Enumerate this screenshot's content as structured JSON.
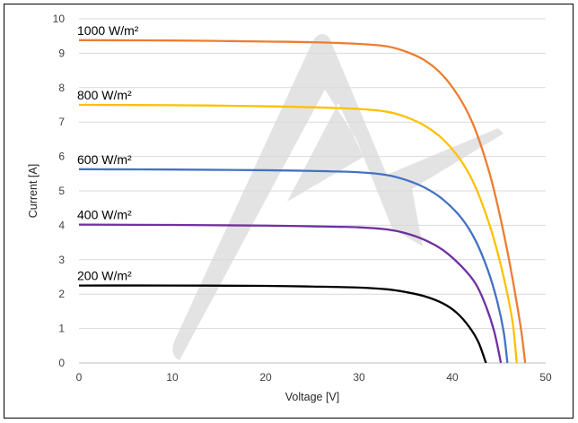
{
  "chart_data": {
    "type": "line",
    "xlabel": "Voltage [V]",
    "ylabel": "Current [A]",
    "xlim": [
      0,
      50
    ],
    "ylim": [
      0,
      10
    ],
    "x_ticks": [
      "0",
      "10",
      "20",
      "30",
      "40",
      "50"
    ],
    "y_ticks": [
      "0",
      "1",
      "2",
      "3",
      "4",
      "5",
      "6",
      "7",
      "8",
      "9",
      "10"
    ],
    "grid": "horizontal",
    "legend": "none",
    "series": [
      {
        "name": "1000 W/m²",
        "color": "#ED7D31",
        "points": [
          [
            0,
            9.38
          ],
          [
            10,
            9.37
          ],
          [
            20,
            9.34
          ],
          [
            25,
            9.32
          ],
          [
            30,
            9.27
          ],
          [
            33,
            9.2
          ],
          [
            35,
            9.05
          ],
          [
            37,
            8.8
          ],
          [
            39,
            8.35
          ],
          [
            41,
            7.6
          ],
          [
            42.5,
            6.75
          ],
          [
            44,
            5.5
          ],
          [
            45,
            4.4
          ],
          [
            46,
            3.1
          ],
          [
            46.8,
            1.9
          ],
          [
            47.4,
            0.9
          ],
          [
            47.8,
            0
          ]
        ]
      },
      {
        "name": "800 W/m²",
        "color": "#FFC000",
        "points": [
          [
            0,
            7.5
          ],
          [
            10,
            7.49
          ],
          [
            20,
            7.46
          ],
          [
            25,
            7.43
          ],
          [
            30,
            7.38
          ],
          [
            33,
            7.3
          ],
          [
            35,
            7.15
          ],
          [
            37,
            6.9
          ],
          [
            39,
            6.5
          ],
          [
            41,
            5.85
          ],
          [
            42.5,
            5.1
          ],
          [
            44,
            4.0
          ],
          [
            45,
            3.05
          ],
          [
            45.9,
            2.0
          ],
          [
            46.5,
            1.1
          ],
          [
            46.9,
            0
          ]
        ]
      },
      {
        "name": "600 W/m²",
        "color": "#4472C4",
        "points": [
          [
            0,
            5.63
          ],
          [
            10,
            5.62
          ],
          [
            20,
            5.6
          ],
          [
            25,
            5.58
          ],
          [
            30,
            5.54
          ],
          [
            33,
            5.46
          ],
          [
            35,
            5.32
          ],
          [
            37,
            5.1
          ],
          [
            39,
            4.75
          ],
          [
            41,
            4.2
          ],
          [
            42.5,
            3.55
          ],
          [
            43.8,
            2.7
          ],
          [
            44.8,
            1.8
          ],
          [
            45.5,
            0.9
          ],
          [
            45.9,
            0
          ]
        ]
      },
      {
        "name": "400 W/m²",
        "color": "#7030A0",
        "points": [
          [
            0,
            4.02
          ],
          [
            10,
            4.01
          ],
          [
            20,
            3.99
          ],
          [
            25,
            3.97
          ],
          [
            30,
            3.94
          ],
          [
            33,
            3.88
          ],
          [
            35,
            3.77
          ],
          [
            37,
            3.58
          ],
          [
            39,
            3.28
          ],
          [
            41,
            2.8
          ],
          [
            42.5,
            2.3
          ],
          [
            43.6,
            1.65
          ],
          [
            44.5,
            0.9
          ],
          [
            45.2,
            0
          ]
        ]
      },
      {
        "name": "200 W/m²",
        "color": "#000000",
        "points": [
          [
            0,
            2.25
          ],
          [
            10,
            2.25
          ],
          [
            20,
            2.24
          ],
          [
            25,
            2.22
          ],
          [
            30,
            2.19
          ],
          [
            33,
            2.14
          ],
          [
            35,
            2.06
          ],
          [
            37,
            1.94
          ],
          [
            39,
            1.73
          ],
          [
            40.5,
            1.45
          ],
          [
            41.8,
            1.05
          ],
          [
            42.8,
            0.6
          ],
          [
            43.6,
            0
          ]
        ]
      }
    ]
  }
}
